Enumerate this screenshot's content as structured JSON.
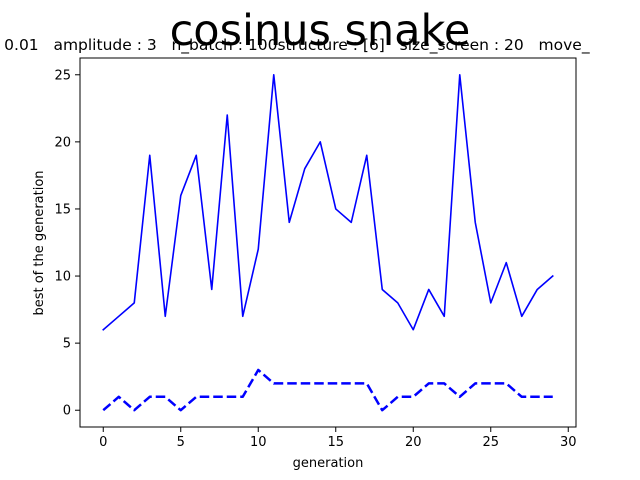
{
  "chart_data": {
    "type": "line",
    "title": "cosinus snake",
    "subtitle": ": 0.01   amplitude : 3   n_batch : 100structure : [6]   size_screen : 20   move_",
    "xlabel": "generation",
    "ylabel": "best of the generation",
    "xlim": [
      -1.5,
      30.5
    ],
    "ylim": [
      -1.25,
      26.25
    ],
    "xticks": [
      0,
      5,
      10,
      15,
      20,
      25,
      30
    ],
    "yticks": [
      0,
      5,
      10,
      15,
      20,
      25
    ],
    "grid": false,
    "colors": {
      "series": "#0000ff",
      "axes": "#000000",
      "background": "#ffffff"
    },
    "x": [
      0,
      1,
      2,
      3,
      4,
      5,
      6,
      7,
      8,
      9,
      10,
      11,
      12,
      13,
      14,
      15,
      16,
      17,
      18,
      19,
      20,
      21,
      22,
      23,
      24,
      25,
      26,
      27,
      28,
      29
    ],
    "series": [
      {
        "style": "solid",
        "color": "#0000ff",
        "values": [
          6,
          7,
          8,
          19,
          7,
          16,
          19,
          9,
          22,
          7,
          12,
          25,
          14,
          18,
          20,
          15,
          14,
          19,
          9,
          8,
          6,
          9,
          7,
          25,
          14,
          8,
          11,
          7,
          9,
          10
        ]
      },
      {
        "style": "dashed",
        "color": "#0000ff",
        "values": [
          0,
          1,
          0,
          1,
          1,
          0,
          1,
          1,
          1,
          1,
          3,
          2,
          2,
          2,
          2,
          2,
          2,
          2,
          0,
          1,
          1,
          2,
          2,
          1,
          2,
          2,
          2,
          1,
          1,
          1
        ]
      }
    ]
  }
}
